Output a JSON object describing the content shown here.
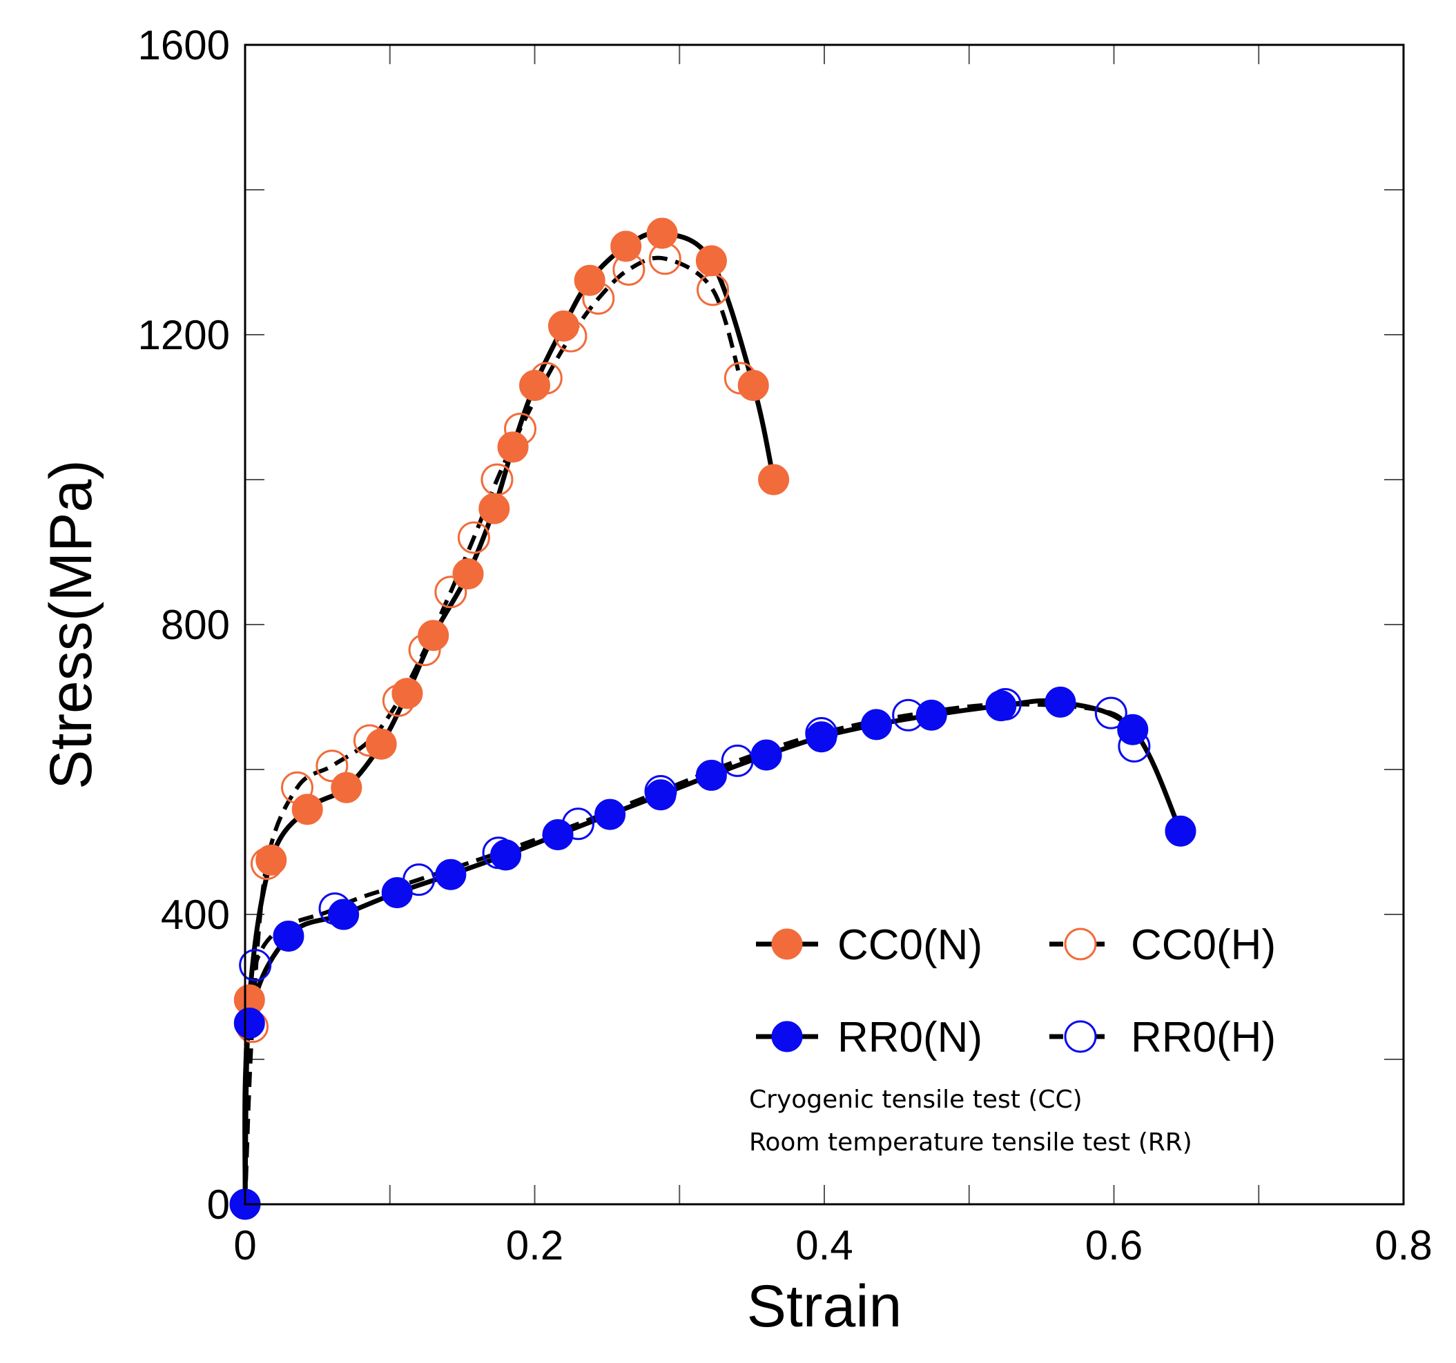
{
  "chart_data": {
    "type": "line",
    "title": "",
    "xlabel": "Strain",
    "ylabel": "Stress(MPa)",
    "xlim": [
      0,
      0.8
    ],
    "ylim": [
      0,
      1600
    ],
    "x_ticks": [
      0,
      0.2,
      0.4,
      0.6,
      0.8
    ],
    "x_tick_labels": [
      "0",
      "0.2",
      "0.4",
      "0.6",
      "0.8"
    ],
    "y_ticks": [
      0,
      400,
      800,
      1200,
      1600
    ],
    "y_tick_labels": [
      "0",
      "400",
      "800",
      "1200",
      "1600"
    ],
    "y_minor_ticks": [
      200,
      600,
      1000,
      1400
    ],
    "x_minor_ticks": [
      0.1,
      0.3,
      0.5,
      0.7
    ],
    "grid": false,
    "legend_position": "bottom-right",
    "colors": {
      "cc": "#F26B3A",
      "rr": "#0A0AF0",
      "curve": "#000000"
    },
    "series": [
      {
        "name": "CC0(N)",
        "color": "#F26B3A",
        "marker": "filled",
        "line": "solid",
        "x": [
          0.003,
          0.018,
          0.043,
          0.07,
          0.094,
          0.112,
          0.13,
          0.154,
          0.172,
          0.185,
          0.2,
          0.22,
          0.238,
          0.263,
          0.288,
          0.322,
          0.351,
          0.365
        ],
        "y": [
          282,
          475,
          545,
          575,
          635,
          705,
          785,
          870,
          960,
          1045,
          1130,
          1212,
          1275,
          1322,
          1340,
          1302,
          1130,
          1000
        ]
      },
      {
        "name": "CC0(H)",
        "color": "#F26B3A",
        "marker": "open",
        "line": "dashed",
        "x": [
          0.005,
          0.015,
          0.036,
          0.06,
          0.086,
          0.106,
          0.124,
          0.142,
          0.158,
          0.174,
          0.19,
          0.208,
          0.225,
          0.244,
          0.265,
          0.29,
          0.323,
          0.342
        ],
        "y": [
          245,
          470,
          575,
          605,
          640,
          695,
          765,
          845,
          920,
          1000,
          1070,
          1140,
          1198,
          1250,
          1290,
          1305,
          1262,
          1140
        ]
      },
      {
        "name": "RR0(N)",
        "color": "#0A0AF0",
        "marker": "filled",
        "line": "solid",
        "x": [
          0.0,
          0.003,
          0.03,
          0.068,
          0.105,
          0.142,
          0.18,
          0.216,
          0.252,
          0.287,
          0.322,
          0.36,
          0.398,
          0.436,
          0.474,
          0.522,
          0.563,
          0.613,
          0.646
        ],
        "y": [
          0,
          250,
          370,
          400,
          430,
          455,
          482,
          510,
          538,
          565,
          592,
          620,
          645,
          662,
          675,
          688,
          693,
          655,
          515
        ]
      },
      {
        "name": "RR0(H)",
        "color": "#0A0AF0",
        "marker": "open",
        "line": "dashed",
        "x": [
          0.007,
          0.062,
          0.12,
          0.175,
          0.23,
          0.287,
          0.34,
          0.398,
          0.458,
          0.525,
          0.598,
          0.614
        ],
        "y": [
          330,
          408,
          448,
          485,
          525,
          570,
          612,
          650,
          675,
          690,
          678,
          632
        ]
      }
    ],
    "annotations": [
      "Cryogenic tensile test (CC)",
      "Room temperature tensile test (RR)"
    ]
  }
}
